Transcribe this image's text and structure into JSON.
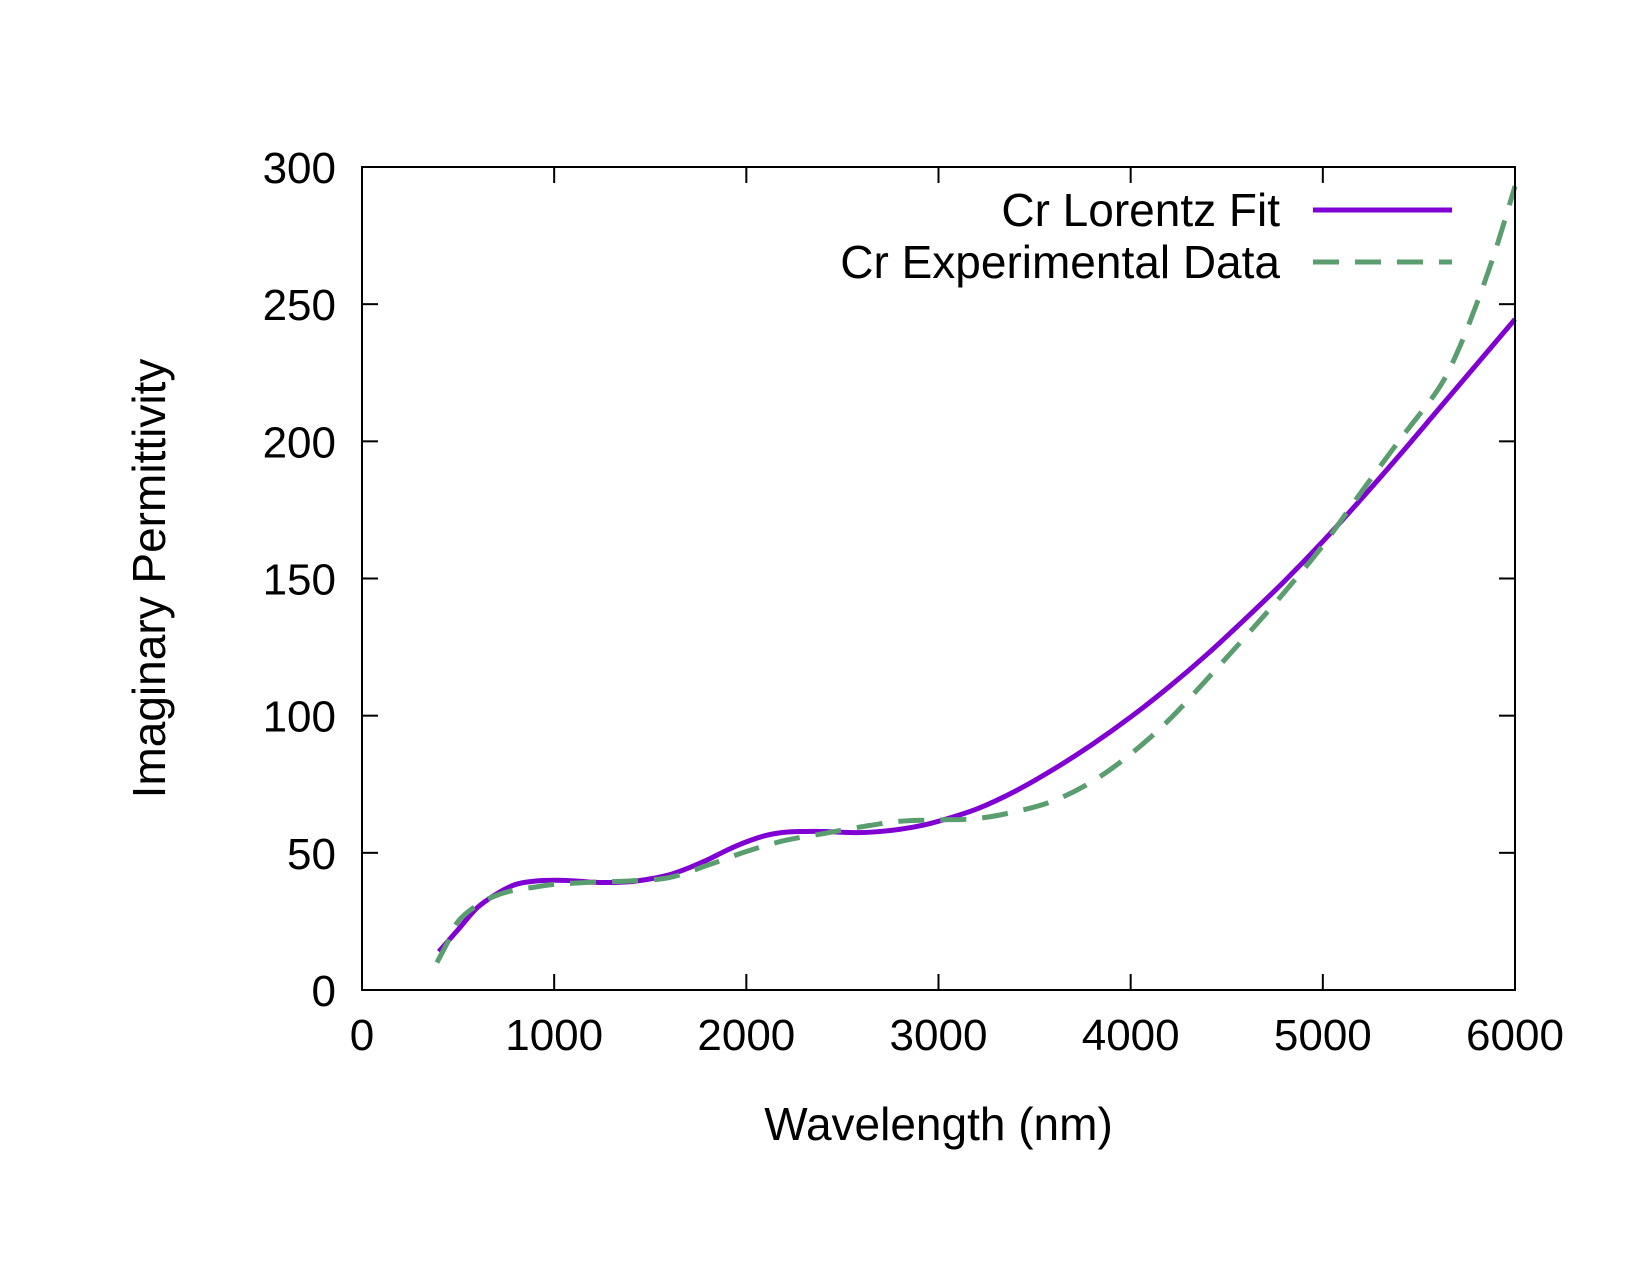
{
  "chart_data": {
    "type": "line",
    "title": "",
    "xlabel": "Wavelength (nm)",
    "ylabel": "Imaginary Permittivity",
    "xlim": [
      0,
      6000
    ],
    "ylim": [
      0,
      300
    ],
    "x_ticks": [
      0,
      1000,
      2000,
      3000,
      4000,
      5000,
      6000
    ],
    "y_ticks": [
      0,
      50,
      100,
      150,
      200,
      250,
      300
    ],
    "x_tick_labels": [
      "0",
      "1000",
      "2000",
      "3000",
      "4000",
      "5000",
      "6000"
    ],
    "y_tick_labels": [
      "0",
      "50",
      "100",
      "150",
      "200",
      "250",
      "300"
    ],
    "grid": false,
    "legend_position": "top-right",
    "series": [
      {
        "name": "Cr Lorentz Fit",
        "color": "#8000d4",
        "style": "solid",
        "x": [
          400,
          500,
          600,
          700,
          800,
          900,
          1000,
          1100,
          1200,
          1300,
          1400,
          1500,
          1600,
          1700,
          1800,
          1900,
          2000,
          2100,
          2200,
          2300,
          2400,
          2500,
          2600,
          2700,
          2800,
          2900,
          3000,
          3200,
          3400,
          3600,
          3800,
          4000,
          4200,
          4400,
          4600,
          4800,
          5000,
          5200,
          5400,
          5600,
          5800,
          6000
        ],
        "y": [
          14,
          22,
          30,
          35,
          38.5,
          39.7,
          40,
          39.8,
          39.3,
          39.2,
          39.5,
          40.5,
          42,
          44.5,
          47.5,
          51,
          54,
          56.3,
          57.5,
          57.8,
          57.8,
          57.5,
          57.4,
          57.8,
          58.6,
          59.8,
          61.5,
          66,
          72.5,
          80.5,
          89.5,
          99.5,
          110.5,
          122.5,
          135.5,
          149,
          163.5,
          179,
          195,
          211.5,
          228,
          244.5
        ]
      },
      {
        "name": "Cr Experimental Data",
        "color": "#5a9e6f",
        "style": "dashed",
        "x": [
          390,
          450,
          500,
          600,
          700,
          800,
          900,
          1000,
          1200,
          1400,
          1600,
          1800,
          2000,
          2200,
          2400,
          2600,
          2800,
          3000,
          3200,
          3400,
          3600,
          3800,
          4000,
          4200,
          4400,
          4600,
          4800,
          5000,
          5200,
          5400,
          5600,
          5700,
          5800,
          5900,
          6000
        ],
        "y": [
          10,
          18,
          25,
          31,
          34.5,
          36.5,
          37.5,
          38.5,
          39.3,
          39.8,
          41,
          45.5,
          50.5,
          54.5,
          57,
          59.5,
          61.5,
          62,
          62.5,
          65,
          69,
          76,
          86,
          98.5,
          113.5,
          129,
          145,
          162,
          181.5,
          200.5,
          219,
          232.5,
          250,
          270,
          293
        ]
      }
    ]
  }
}
